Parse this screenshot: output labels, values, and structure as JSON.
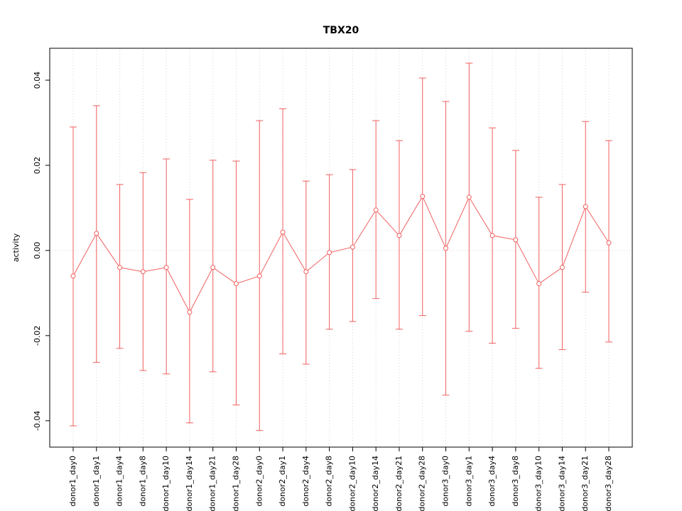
{
  "title": "TBX20",
  "colors": {
    "series": "#f15f5f",
    "grid": "#d4d4d4",
    "zero_line": "#d4d4d4",
    "axis": "#000000",
    "background": "#ffffff"
  },
  "chart_data": {
    "type": "line",
    "title": "TBX20",
    "xlabel": "",
    "ylabel": "activity",
    "ylim": [
      -0.0462,
      0.0475
    ],
    "yticks": [
      -0.04,
      -0.02,
      0.0,
      0.02,
      0.04
    ],
    "ytick_labels": [
      "-0.04",
      "-0.02",
      "0.00",
      "0.02",
      "0.04"
    ],
    "grid": "vertical dotted gridlines at each category; dotted horizontal line at y=0",
    "legend": "none",
    "marker": "open-circle",
    "error_bars": true,
    "categories": [
      "donor1_day0",
      "donor1_day1",
      "donor1_day4",
      "donor1_day8",
      "donor1_day10",
      "donor1_day14",
      "donor1_day21",
      "donor1_day28",
      "donor2_day0",
      "donor2_day1",
      "donor2_day4",
      "donor2_day8",
      "donor2_day10",
      "donor2_day14",
      "donor2_day21",
      "donor2_day28",
      "donor3_day0",
      "donor3_day1",
      "donor3_day4",
      "donor3_day8",
      "donor3_day10",
      "donor3_day14",
      "donor3_day21",
      "donor3_day28"
    ],
    "series": [
      {
        "name": "activity",
        "values": [
          -0.006,
          0.004,
          -0.004,
          -0.005,
          -0.004,
          -0.0145,
          -0.004,
          -0.0078,
          -0.006,
          0.0043,
          -0.005,
          -0.0005,
          0.0008,
          0.0095,
          0.0035,
          0.0127,
          0.0005,
          0.0125,
          0.0035,
          0.0025,
          -0.0078,
          -0.004,
          0.0103,
          0.0018
        ],
        "upper": [
          0.029,
          0.034,
          0.0155,
          0.0183,
          0.0215,
          0.012,
          0.0212,
          0.021,
          0.0305,
          0.0333,
          0.0163,
          0.0178,
          0.019,
          0.0305,
          0.0258,
          0.0405,
          0.035,
          0.044,
          0.0288,
          0.0235,
          0.0125,
          0.0155,
          0.0303,
          0.0258
        ],
        "lower": [
          -0.0412,
          -0.0263,
          -0.023,
          -0.0282,
          -0.029,
          -0.0405,
          -0.0285,
          -0.0363,
          -0.0423,
          -0.0243,
          -0.0267,
          -0.0185,
          -0.0167,
          -0.0113,
          -0.0185,
          -0.0153,
          -0.034,
          -0.019,
          -0.0218,
          -0.0183,
          -0.0277,
          -0.0233,
          -0.0098,
          -0.0215
        ]
      }
    ]
  }
}
